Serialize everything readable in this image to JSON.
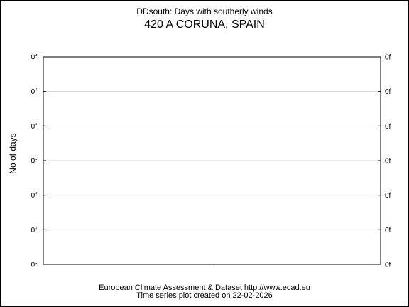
{
  "chart_data": {
    "type": "line",
    "title": "DDsouth: Days with southerly winds",
    "subtitle": "420 A CORUNA, SPAIN",
    "ylabel": "No of days",
    "xlabel": "",
    "y_tick_labels": [
      "0f",
      "0f",
      "0f",
      "0f",
      "0f",
      "0f",
      "0f"
    ],
    "x_tick_labels": [],
    "series": [],
    "grid": true,
    "colors": {
      "grid": "#d3d3d3",
      "axis": "#000000"
    }
  },
  "footer": {
    "line1": "European Climate Assessment & Dataset  http://www.ecad.eu",
    "line2": "Time series plot created on 22-02-2026"
  }
}
